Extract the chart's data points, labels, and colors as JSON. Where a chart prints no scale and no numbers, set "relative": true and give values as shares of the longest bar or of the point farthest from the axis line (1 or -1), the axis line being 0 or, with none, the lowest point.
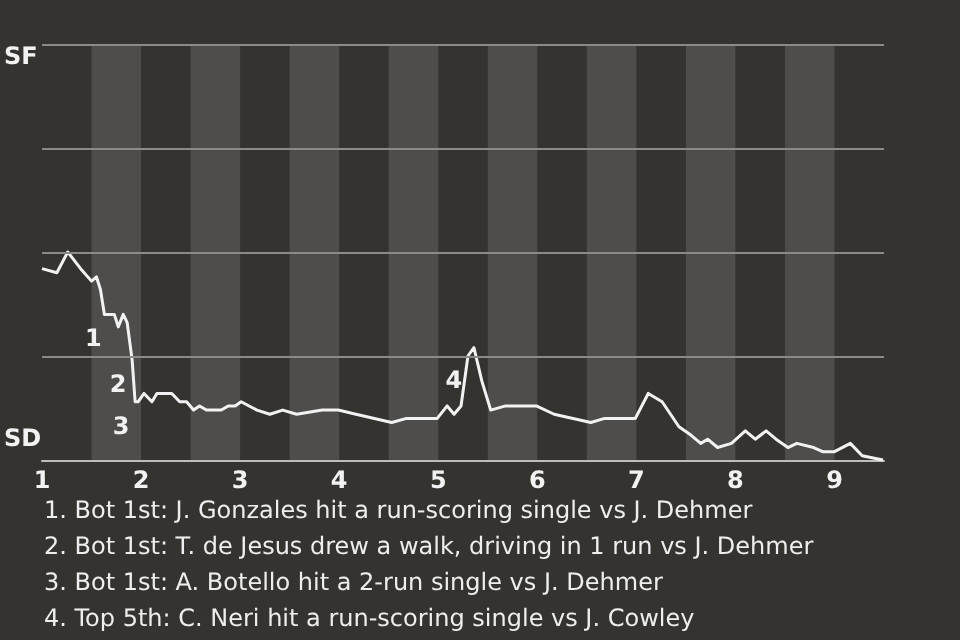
{
  "chart_data": {
    "type": "line",
    "relative": true,
    "x": [
      1.0,
      1.15,
      1.26,
      1.39,
      1.5,
      1.55,
      1.59,
      1.63,
      1.66,
      1.73,
      1.77,
      1.82,
      1.86,
      1.91,
      1.94,
      1.97,
      2.03,
      2.11,
      2.16,
      2.31,
      2.39,
      2.46,
      2.53,
      2.59,
      2.66,
      2.81,
      2.88,
      2.95,
      3.01,
      3.17,
      3.3,
      3.43,
      3.57,
      3.83,
      3.99,
      4.17,
      4.53,
      4.68,
      4.99,
      5.09,
      5.16,
      5.23,
      5.3,
      5.36,
      5.44,
      5.53,
      5.68,
      5.99,
      6.17,
      6.54,
      6.68,
      6.99,
      7.12,
      7.26,
      7.43,
      7.55,
      7.65,
      7.72,
      7.82,
      7.96,
      8.1,
      8.2,
      8.31,
      8.41,
      8.53,
      8.62,
      8.79,
      8.88,
      9.0,
      9.16,
      9.28,
      9.49
    ],
    "series": [
      {
        "color": "#f2f2f2",
        "values": [
          0.92,
          0.9,
          1.0,
          0.92,
          0.86,
          0.88,
          0.82,
          0.7,
          0.7,
          0.7,
          0.64,
          0.7,
          0.66,
          0.48,
          0.28,
          0.28,
          0.32,
          0.28,
          0.32,
          0.32,
          0.28,
          0.28,
          0.24,
          0.26,
          0.24,
          0.24,
          0.26,
          0.26,
          0.28,
          0.24,
          0.22,
          0.24,
          0.22,
          0.24,
          0.24,
          0.22,
          0.18,
          0.2,
          0.2,
          0.26,
          0.22,
          0.26,
          0.5,
          0.54,
          0.38,
          0.24,
          0.26,
          0.26,
          0.22,
          0.18,
          0.2,
          0.2,
          0.32,
          0.28,
          0.16,
          0.12,
          0.08,
          0.1,
          0.06,
          0.08,
          0.14,
          0.1,
          0.14,
          0.1,
          0.06,
          0.08,
          0.06,
          0.04,
          0.04,
          0.08,
          0.02,
          0.0
        ]
      }
    ],
    "xlim": [
      1,
      9.5
    ],
    "xticks": [
      1,
      2,
      3,
      4,
      5,
      6,
      7,
      8,
      9
    ],
    "ref_lines": [
      {
        "axis": "y",
        "value": 0.5,
        "color": "#8a8a88"
      },
      {
        "axis": "y",
        "value": 1,
        "color": "#8a8a88"
      },
      {
        "axis": "y",
        "value": 1.5,
        "color": "#8a8a88"
      },
      {
        "axis": "y",
        "value": 2,
        "color": "#8a8a88"
      }
    ],
    "bands": [
      {
        "axis": "x",
        "from": 1.5,
        "to": 2,
        "color": "#4e4d4b"
      },
      {
        "axis": "x",
        "from": 2.5,
        "to": 3,
        "color": "#4e4d4b"
      },
      {
        "axis": "x",
        "from": 3.5,
        "to": 4,
        "color": "#4e4d4b"
      },
      {
        "axis": "x",
        "from": 4.5,
        "to": 5,
        "color": "#4e4d4b"
      },
      {
        "axis": "x",
        "from": 5.5,
        "to": 6,
        "color": "#4e4d4b"
      },
      {
        "axis": "x",
        "from": 6.5,
        "to": 7,
        "color": "#4e4d4b"
      },
      {
        "axis": "x",
        "from": 7.5,
        "to": 8,
        "color": "#4e4d4b"
      },
      {
        "axis": "x",
        "from": 8.5,
        "to": 9,
        "color": "#4e4d4b"
      }
    ],
    "annotations": [
      "SF",
      "SD",
      {
        "text": "1",
        "x": 1.66,
        "y": 0.7
      },
      {
        "text": "2",
        "x": 1.91,
        "y": 0.48
      },
      {
        "text": "3",
        "x": 1.94,
        "y": 0.28
      },
      {
        "text": "4",
        "x": 5.3,
        "y": 0.5
      },
      "1. Bot 1st: J. Gonzales hit a run-scoring single vs J. Dehmer",
      "2. Bot 1st: T. de Jesus drew a walk, driving in 1 run vs J. Dehmer",
      "3. Bot 1st: A. Botello hit a 2-run single vs J. Dehmer",
      "4. Top 5th: C. Neri hit a run-scoring single vs J. Cowley"
    ]
  }
}
